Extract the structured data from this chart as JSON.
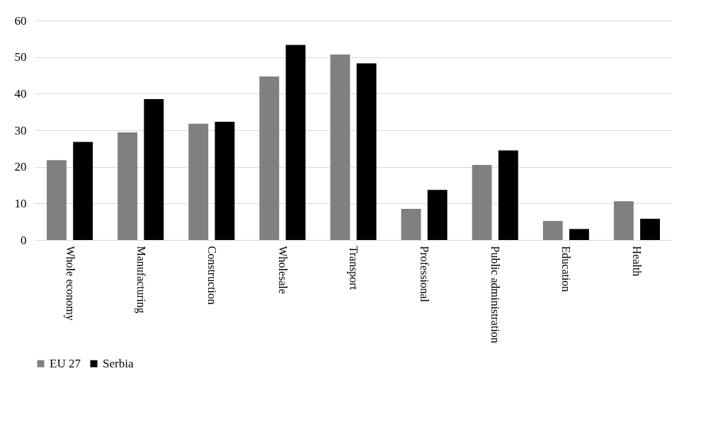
{
  "chart_data": {
    "type": "bar",
    "categories": [
      "Whole economy",
      "Manufacturing",
      "Construction",
      "Wholesale",
      "Transport",
      "Professional",
      "Public administration",
      "Education",
      "Health"
    ],
    "series": [
      {
        "name": "EU 27",
        "color": "#808080",
        "values": [
          21.8,
          29.4,
          31.8,
          44.7,
          50.7,
          8.5,
          20.5,
          5.2,
          10.6
        ]
      },
      {
        "name": "Serbia",
        "color": "#000000",
        "values": [
          26.8,
          38.5,
          32.3,
          53.3,
          48.3,
          13.7,
          24.5,
          3.0,
          5.8
        ]
      }
    ],
    "ylim": [
      0,
      60
    ],
    "yticks": [
      0,
      10,
      20,
      30,
      40,
      50,
      60
    ],
    "grid": "y",
    "legend": "bottom"
  }
}
